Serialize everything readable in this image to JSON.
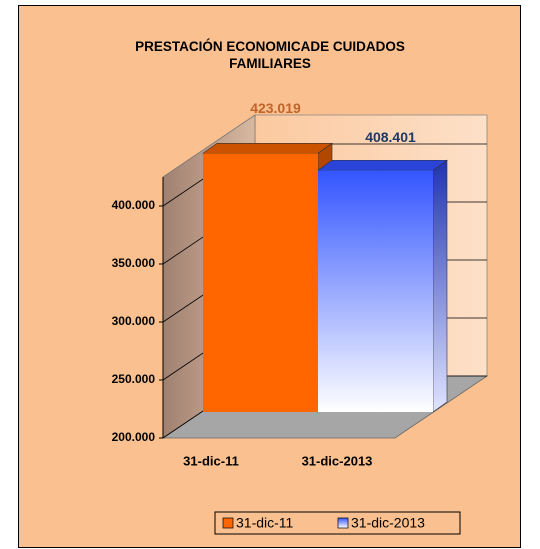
{
  "chart_data": {
    "type": "bar3d",
    "title": "PRESTACIÓN ECONOMICADE CUIDADOS FAMILIARES",
    "categories": [
      "31-dic-11",
      "31-dic-2013"
    ],
    "values": [
      423019,
      408401
    ],
    "value_labels": [
      "423.019",
      "408.401"
    ],
    "colors": [
      "#ff6600",
      "#3355ff"
    ],
    "label_colors": [
      "#c0642a",
      "#1f3864"
    ],
    "ylim": [
      200000,
      425000
    ],
    "yticks": [
      {
        "value": 200000,
        "label": "200.000"
      },
      {
        "value": 250000,
        "label": "250.000"
      },
      {
        "value": 300000,
        "label": "300.000"
      },
      {
        "value": 350000,
        "label": "350.000"
      },
      {
        "value": 400000,
        "label": "400.000"
      }
    ],
    "grid": true,
    "legend": "bottom"
  }
}
